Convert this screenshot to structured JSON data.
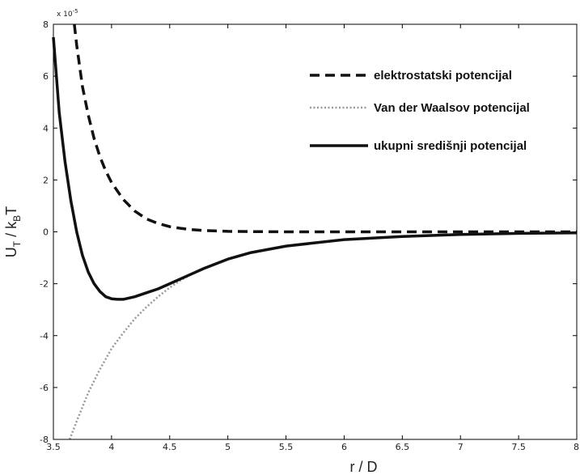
{
  "chart_data": {
    "type": "line",
    "title": "",
    "xlabel": "r / D",
    "ylabel_main": "U",
    "ylabel_sub1": "T",
    "ylabel_mid": " / k",
    "ylabel_sub2": "B",
    "ylabel_end": "T",
    "y_multiplier_text": "x 10",
    "y_multiplier_exp": "-5",
    "xlim": [
      3.5,
      8
    ],
    "ylim": [
      -8,
      8
    ],
    "y_scale_factor": 1e-05,
    "x_ticks": [
      "3.5",
      "4",
      "4.5",
      "5",
      "5.5",
      "6",
      "6.5",
      "7",
      "7.5",
      "8"
    ],
    "y_ticks": [
      "-8",
      "-6",
      "-4",
      "-2",
      "0",
      "2",
      "4",
      "6",
      "8"
    ],
    "grid": false,
    "legend_position": "top-right",
    "series": [
      {
        "name": "elektrostatski potencijal",
        "style": "dashed",
        "color": "#111111",
        "x": [
          3.68,
          3.7,
          3.75,
          3.8,
          3.85,
          3.9,
          3.95,
          4.0,
          4.1,
          4.2,
          4.3,
          4.4,
          4.5,
          4.6,
          4.7,
          4.8,
          5.0,
          5.2,
          5.5,
          6.0,
          6.5,
          7.0,
          7.5,
          8.0
        ],
        "values": [
          8.0,
          7.2,
          5.6,
          4.5,
          3.6,
          2.9,
          2.35,
          1.9,
          1.25,
          0.8,
          0.5,
          0.32,
          0.2,
          0.13,
          0.08,
          0.05,
          0.02,
          0.01,
          0.0,
          0.0,
          0.0,
          0.0,
          0.0,
          0.0
        ]
      },
      {
        "name": "Van der Waalsov potencijal",
        "style": "dotted",
        "color": "#999999",
        "x": [
          3.64,
          3.7,
          3.8,
          3.9,
          4.0,
          4.1,
          4.2,
          4.3,
          4.4,
          4.5,
          4.6,
          4.7,
          4.8,
          5.0,
          5.2,
          5.5,
          6.0,
          6.5,
          7.0,
          7.5,
          8.0
        ],
        "values": [
          -8.0,
          -7.3,
          -6.2,
          -5.3,
          -4.5,
          -3.9,
          -3.35,
          -2.9,
          -2.5,
          -2.15,
          -1.85,
          -1.6,
          -1.4,
          -1.05,
          -0.8,
          -0.55,
          -0.3,
          -0.18,
          -0.1,
          -0.06,
          -0.04
        ]
      },
      {
        "name": "ukupni središnji potencijal",
        "style": "solid",
        "color": "#111111",
        "x": [
          3.5,
          3.55,
          3.6,
          3.65,
          3.7,
          3.75,
          3.8,
          3.85,
          3.9,
          3.95,
          4.0,
          4.05,
          4.1,
          4.2,
          4.3,
          4.4,
          4.5,
          4.6,
          4.7,
          4.8,
          5.0,
          5.2,
          5.5,
          6.0,
          6.5,
          7.0,
          7.5,
          8.0
        ],
        "values": [
          7.5,
          4.6,
          2.7,
          1.2,
          0.0,
          -0.9,
          -1.55,
          -2.0,
          -2.3,
          -2.5,
          -2.58,
          -2.6,
          -2.6,
          -2.5,
          -2.35,
          -2.2,
          -2.0,
          -1.8,
          -1.6,
          -1.4,
          -1.05,
          -0.8,
          -0.55,
          -0.3,
          -0.18,
          -0.1,
          -0.06,
          -0.04
        ]
      }
    ]
  }
}
